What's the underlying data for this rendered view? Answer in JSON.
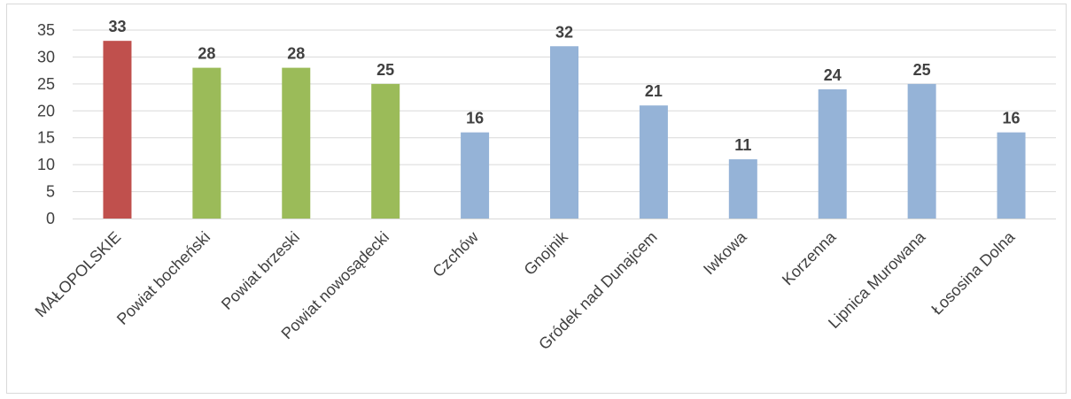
{
  "chart_data": {
    "type": "bar",
    "categories": [
      "MAŁOPOLSKIE",
      "Powiat bocheński",
      "Powiat brzeski",
      "Powiat nowosądecki",
      "Czchów",
      "Gnojnik",
      "Gródek nad Dunajcem",
      "Iwkowa",
      "Korzenna",
      "Lipnica Murowana",
      "Łososina Dolna"
    ],
    "values": [
      33,
      28,
      28,
      25,
      16,
      32,
      21,
      11,
      24,
      25,
      16
    ],
    "colors": [
      "#c0504d",
      "#9bbb59",
      "#9bbb59",
      "#9bbb59",
      "#95b3d7",
      "#95b3d7",
      "#95b3d7",
      "#95b3d7",
      "#95b3d7",
      "#95b3d7",
      "#95b3d7"
    ],
    "ylim": [
      0,
      35
    ],
    "yticks": [
      0,
      5,
      10,
      15,
      20,
      25,
      30,
      35
    ],
    "grid": true,
    "title": "",
    "xlabel": "",
    "ylabel": ""
  }
}
